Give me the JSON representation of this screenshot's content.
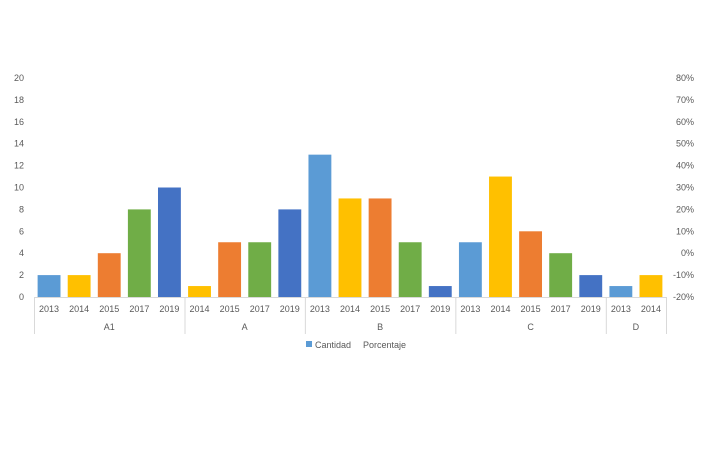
{
  "chart_data": {
    "type": "bar",
    "groups": [
      {
        "label": "A1",
        "categories": [
          "2013",
          "2014",
          "2015",
          "2017",
          "2019"
        ],
        "values": [
          2,
          2,
          4,
          8,
          10
        ]
      },
      {
        "label": "A",
        "categories": [
          "2014",
          "2015",
          "2017",
          "2019"
        ],
        "values": [
          1,
          5,
          5,
          8
        ]
      },
      {
        "label": "B",
        "categories": [
          "2013",
          "2014",
          "2015",
          "2017",
          "2019"
        ],
        "values": [
          13,
          9,
          9,
          5,
          1
        ]
      },
      {
        "label": "C",
        "categories": [
          "2013",
          "2014",
          "2015",
          "2017",
          "2019"
        ],
        "values": [
          5,
          11,
          6,
          4,
          2
        ]
      },
      {
        "label": "D",
        "categories": [
          "2013",
          "2014"
        ],
        "values": [
          1,
          2
        ]
      }
    ],
    "year_colors": {
      "2013": "#5b9bd5",
      "2014": "#ffc000",
      "2015": "#ed7d31",
      "2017": "#70ad47",
      "2019": "#4472c4"
    },
    "ylim": [
      0,
      20
    ],
    "yticks": [
      "0",
      "2",
      "4",
      "6",
      "8",
      "10",
      "12",
      "14",
      "16",
      "18",
      "20"
    ],
    "y2lim": [
      -20,
      80
    ],
    "y2ticks": [
      "-20%",
      "-10%",
      "0%",
      "10%",
      "20%",
      "30%",
      "40%",
      "50%",
      "60%",
      "70%",
      "80%"
    ],
    "legend": {
      "position": "bottom",
      "entries": [
        {
          "name": "Cantidad",
          "color": "#5b9bd5"
        },
        {
          "name": "Porcentaje",
          "color": ""
        }
      ]
    },
    "grid": false
  }
}
